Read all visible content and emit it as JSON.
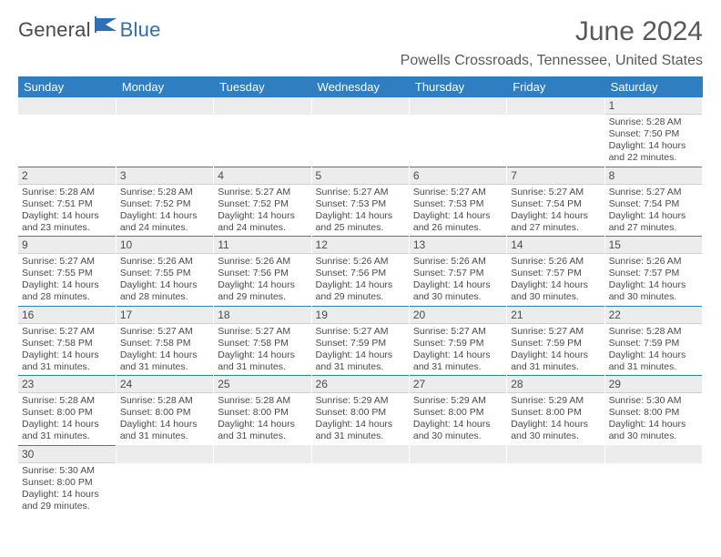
{
  "brand": {
    "word1": "General",
    "word2": "Blue",
    "text_color": "#4a4a4a",
    "accent_color": "#2f6fb5"
  },
  "header": {
    "title": "June 2024",
    "location": "Powells Crossroads, Tennessee, United States",
    "title_color": "#595959",
    "title_fontsize": 30,
    "location_fontsize": 16
  },
  "calendar": {
    "type": "table",
    "header_bg": "#2f7ec2",
    "header_text_color": "#ffffff",
    "daynum_bg": "#ececec",
    "row_divider_color": "#2f7ec2",
    "body_text_color": "#4a4a4a",
    "body_fontsize": 10.5,
    "daynum_fontsize": 12,
    "columns": [
      "Sunday",
      "Monday",
      "Tuesday",
      "Wednesday",
      "Thursday",
      "Friday",
      "Saturday"
    ],
    "weeks": [
      [
        {
          "empty": true
        },
        {
          "empty": true
        },
        {
          "empty": true
        },
        {
          "empty": true
        },
        {
          "empty": true
        },
        {
          "empty": true
        },
        {
          "day": "1",
          "sunrise": "Sunrise: 5:28 AM",
          "sunset": "Sunset: 7:50 PM",
          "daylight1": "Daylight: 14 hours",
          "daylight2": "and 22 minutes."
        }
      ],
      [
        {
          "day": "2",
          "sunrise": "Sunrise: 5:28 AM",
          "sunset": "Sunset: 7:51 PM",
          "daylight1": "Daylight: 14 hours",
          "daylight2": "and 23 minutes."
        },
        {
          "day": "3",
          "sunrise": "Sunrise: 5:28 AM",
          "sunset": "Sunset: 7:52 PM",
          "daylight1": "Daylight: 14 hours",
          "daylight2": "and 24 minutes."
        },
        {
          "day": "4",
          "sunrise": "Sunrise: 5:27 AM",
          "sunset": "Sunset: 7:52 PM",
          "daylight1": "Daylight: 14 hours",
          "daylight2": "and 24 minutes."
        },
        {
          "day": "5",
          "sunrise": "Sunrise: 5:27 AM",
          "sunset": "Sunset: 7:53 PM",
          "daylight1": "Daylight: 14 hours",
          "daylight2": "and 25 minutes."
        },
        {
          "day": "6",
          "sunrise": "Sunrise: 5:27 AM",
          "sunset": "Sunset: 7:53 PM",
          "daylight1": "Daylight: 14 hours",
          "daylight2": "and 26 minutes."
        },
        {
          "day": "7",
          "sunrise": "Sunrise: 5:27 AM",
          "sunset": "Sunset: 7:54 PM",
          "daylight1": "Daylight: 14 hours",
          "daylight2": "and 27 minutes."
        },
        {
          "day": "8",
          "sunrise": "Sunrise: 5:27 AM",
          "sunset": "Sunset: 7:54 PM",
          "daylight1": "Daylight: 14 hours",
          "daylight2": "and 27 minutes."
        }
      ],
      [
        {
          "day": "9",
          "sunrise": "Sunrise: 5:27 AM",
          "sunset": "Sunset: 7:55 PM",
          "daylight1": "Daylight: 14 hours",
          "daylight2": "and 28 minutes."
        },
        {
          "day": "10",
          "sunrise": "Sunrise: 5:26 AM",
          "sunset": "Sunset: 7:55 PM",
          "daylight1": "Daylight: 14 hours",
          "daylight2": "and 28 minutes."
        },
        {
          "day": "11",
          "sunrise": "Sunrise: 5:26 AM",
          "sunset": "Sunset: 7:56 PM",
          "daylight1": "Daylight: 14 hours",
          "daylight2": "and 29 minutes."
        },
        {
          "day": "12",
          "sunrise": "Sunrise: 5:26 AM",
          "sunset": "Sunset: 7:56 PM",
          "daylight1": "Daylight: 14 hours",
          "daylight2": "and 29 minutes."
        },
        {
          "day": "13",
          "sunrise": "Sunrise: 5:26 AM",
          "sunset": "Sunset: 7:57 PM",
          "daylight1": "Daylight: 14 hours",
          "daylight2": "and 30 minutes."
        },
        {
          "day": "14",
          "sunrise": "Sunrise: 5:26 AM",
          "sunset": "Sunset: 7:57 PM",
          "daylight1": "Daylight: 14 hours",
          "daylight2": "and 30 minutes."
        },
        {
          "day": "15",
          "sunrise": "Sunrise: 5:26 AM",
          "sunset": "Sunset: 7:57 PM",
          "daylight1": "Daylight: 14 hours",
          "daylight2": "and 30 minutes."
        }
      ],
      [
        {
          "day": "16",
          "sunrise": "Sunrise: 5:27 AM",
          "sunset": "Sunset: 7:58 PM",
          "daylight1": "Daylight: 14 hours",
          "daylight2": "and 31 minutes."
        },
        {
          "day": "17",
          "sunrise": "Sunrise: 5:27 AM",
          "sunset": "Sunset: 7:58 PM",
          "daylight1": "Daylight: 14 hours",
          "daylight2": "and 31 minutes."
        },
        {
          "day": "18",
          "sunrise": "Sunrise: 5:27 AM",
          "sunset": "Sunset: 7:58 PM",
          "daylight1": "Daylight: 14 hours",
          "daylight2": "and 31 minutes."
        },
        {
          "day": "19",
          "sunrise": "Sunrise: 5:27 AM",
          "sunset": "Sunset: 7:59 PM",
          "daylight1": "Daylight: 14 hours",
          "daylight2": "and 31 minutes."
        },
        {
          "day": "20",
          "sunrise": "Sunrise: 5:27 AM",
          "sunset": "Sunset: 7:59 PM",
          "daylight1": "Daylight: 14 hours",
          "daylight2": "and 31 minutes."
        },
        {
          "day": "21",
          "sunrise": "Sunrise: 5:27 AM",
          "sunset": "Sunset: 7:59 PM",
          "daylight1": "Daylight: 14 hours",
          "daylight2": "and 31 minutes."
        },
        {
          "day": "22",
          "sunrise": "Sunrise: 5:28 AM",
          "sunset": "Sunset: 7:59 PM",
          "daylight1": "Daylight: 14 hours",
          "daylight2": "and 31 minutes."
        }
      ],
      [
        {
          "day": "23",
          "sunrise": "Sunrise: 5:28 AM",
          "sunset": "Sunset: 8:00 PM",
          "daylight1": "Daylight: 14 hours",
          "daylight2": "and 31 minutes."
        },
        {
          "day": "24",
          "sunrise": "Sunrise: 5:28 AM",
          "sunset": "Sunset: 8:00 PM",
          "daylight1": "Daylight: 14 hours",
          "daylight2": "and 31 minutes."
        },
        {
          "day": "25",
          "sunrise": "Sunrise: 5:28 AM",
          "sunset": "Sunset: 8:00 PM",
          "daylight1": "Daylight: 14 hours",
          "daylight2": "and 31 minutes."
        },
        {
          "day": "26",
          "sunrise": "Sunrise: 5:29 AM",
          "sunset": "Sunset: 8:00 PM",
          "daylight1": "Daylight: 14 hours",
          "daylight2": "and 31 minutes."
        },
        {
          "day": "27",
          "sunrise": "Sunrise: 5:29 AM",
          "sunset": "Sunset: 8:00 PM",
          "daylight1": "Daylight: 14 hours",
          "daylight2": "and 30 minutes."
        },
        {
          "day": "28",
          "sunrise": "Sunrise: 5:29 AM",
          "sunset": "Sunset: 8:00 PM",
          "daylight1": "Daylight: 14 hours",
          "daylight2": "and 30 minutes."
        },
        {
          "day": "29",
          "sunrise": "Sunrise: 5:30 AM",
          "sunset": "Sunset: 8:00 PM",
          "daylight1": "Daylight: 14 hours",
          "daylight2": "and 30 minutes."
        }
      ],
      [
        {
          "day": "30",
          "sunrise": "Sunrise: 5:30 AM",
          "sunset": "Sunset: 8:00 PM",
          "daylight1": "Daylight: 14 hours",
          "daylight2": "and 29 minutes."
        },
        {
          "empty": true
        },
        {
          "empty": true
        },
        {
          "empty": true
        },
        {
          "empty": true
        },
        {
          "empty": true
        },
        {
          "empty": true
        }
      ]
    ]
  }
}
